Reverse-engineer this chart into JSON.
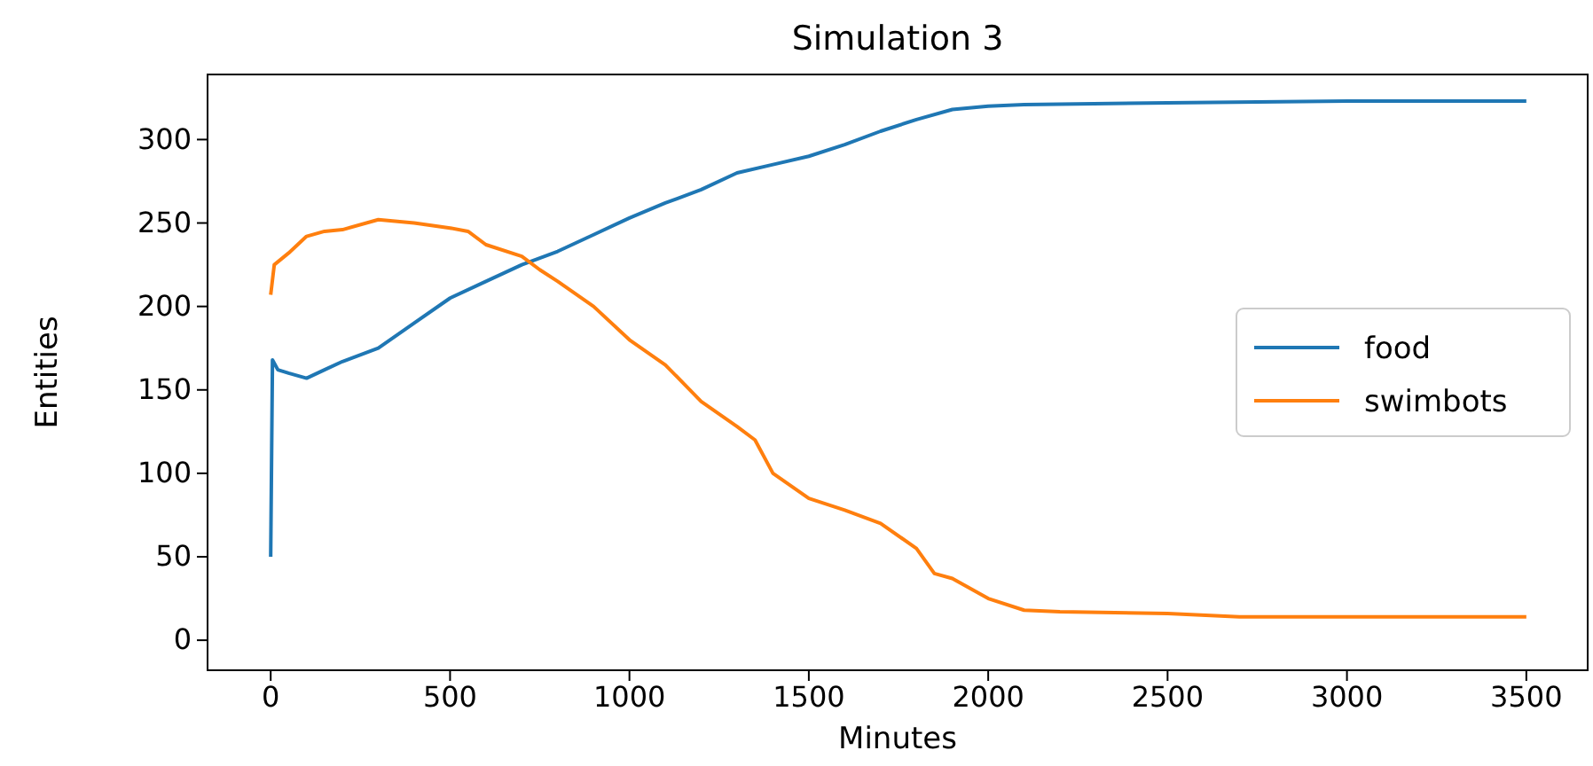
{
  "chart_data": {
    "type": "line",
    "title": "Simulation 3",
    "xlabel": "Minutes",
    "ylabel": "Entities",
    "xlim": [
      -176,
      3671
    ],
    "xticks": [
      0,
      500,
      1000,
      1500,
      2000,
      2500,
      3000,
      3500
    ],
    "ylim": [
      -18,
      339
    ],
    "yticks": [
      0,
      50,
      100,
      150,
      200,
      250,
      300
    ],
    "legend": "right",
    "grid": false,
    "series": [
      {
        "name": "food",
        "color": "#1f77b4",
        "x": [
          0,
          5,
          20,
          50,
          100,
          150,
          200,
          300,
          400,
          500,
          600,
          700,
          800,
          900,
          1000,
          1100,
          1200,
          1300,
          1400,
          1500,
          1600,
          1700,
          1800,
          1900,
          2000,
          2100,
          2500,
          3000,
          3500
        ],
        "values": [
          50,
          168,
          162,
          160,
          157,
          162,
          167,
          175,
          190,
          205,
          215,
          225,
          233,
          243,
          253,
          262,
          270,
          280,
          285,
          290,
          297,
          305,
          312,
          318,
          320,
          321,
          322,
          323,
          323
        ]
      },
      {
        "name": "swimbots",
        "color": "#ff7f0e",
        "x": [
          0,
          10,
          50,
          100,
          150,
          200,
          300,
          400,
          500,
          550,
          600,
          700,
          750,
          800,
          900,
          1000,
          1100,
          1200,
          1300,
          1350,
          1400,
          1500,
          1600,
          1700,
          1800,
          1850,
          1900,
          2000,
          2100,
          2200,
          2500,
          2700,
          3000,
          3500
        ],
        "values": [
          207,
          225,
          232,
          242,
          245,
          246,
          252,
          250,
          247,
          245,
          237,
          230,
          222,
          215,
          200,
          180,
          165,
          143,
          128,
          120,
          100,
          85,
          78,
          70,
          55,
          40,
          37,
          25,
          18,
          17,
          16,
          14,
          14,
          14
        ]
      }
    ]
  }
}
